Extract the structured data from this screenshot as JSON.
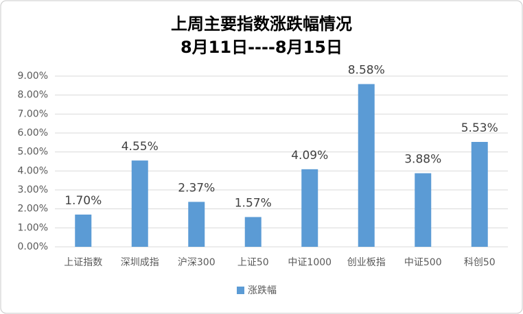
{
  "chart_data": {
    "type": "bar",
    "title": "上周主要指数涨跌幅情况",
    "subtitle": "8月11日----8月15日",
    "categories": [
      "上证指数",
      "深圳成指",
      "沪深300",
      "上证50",
      "中证1000",
      "创业板指",
      "中证500",
      "科创50"
    ],
    "series": [
      {
        "name": "涨跌幅",
        "color": "#5b9bd5",
        "values": [
          1.7,
          4.55,
          2.37,
          1.57,
          4.09,
          8.58,
          3.88,
          5.53
        ],
        "value_labels": [
          "1.70%",
          "4.55%",
          "2.37%",
          "1.57%",
          "4.09%",
          "8.58%",
          "3.88%",
          "5.53%"
        ]
      }
    ],
    "ylim": [
      0,
      9
    ],
    "yticks": [
      {
        "value": 0,
        "label": "0.00%"
      },
      {
        "value": 1,
        "label": "1.00%"
      },
      {
        "value": 2,
        "label": "2.00%"
      },
      {
        "value": 3,
        "label": "3.00%"
      },
      {
        "value": 4,
        "label": "4.00%"
      },
      {
        "value": 5,
        "label": "5.00%"
      },
      {
        "value": 6,
        "label": "6.00%"
      },
      {
        "value": 7,
        "label": "7.00%"
      },
      {
        "value": 8,
        "label": "8.00%"
      },
      {
        "value": 9,
        "label": "9.00%"
      }
    ],
    "grid": true,
    "legend": "bottom"
  }
}
